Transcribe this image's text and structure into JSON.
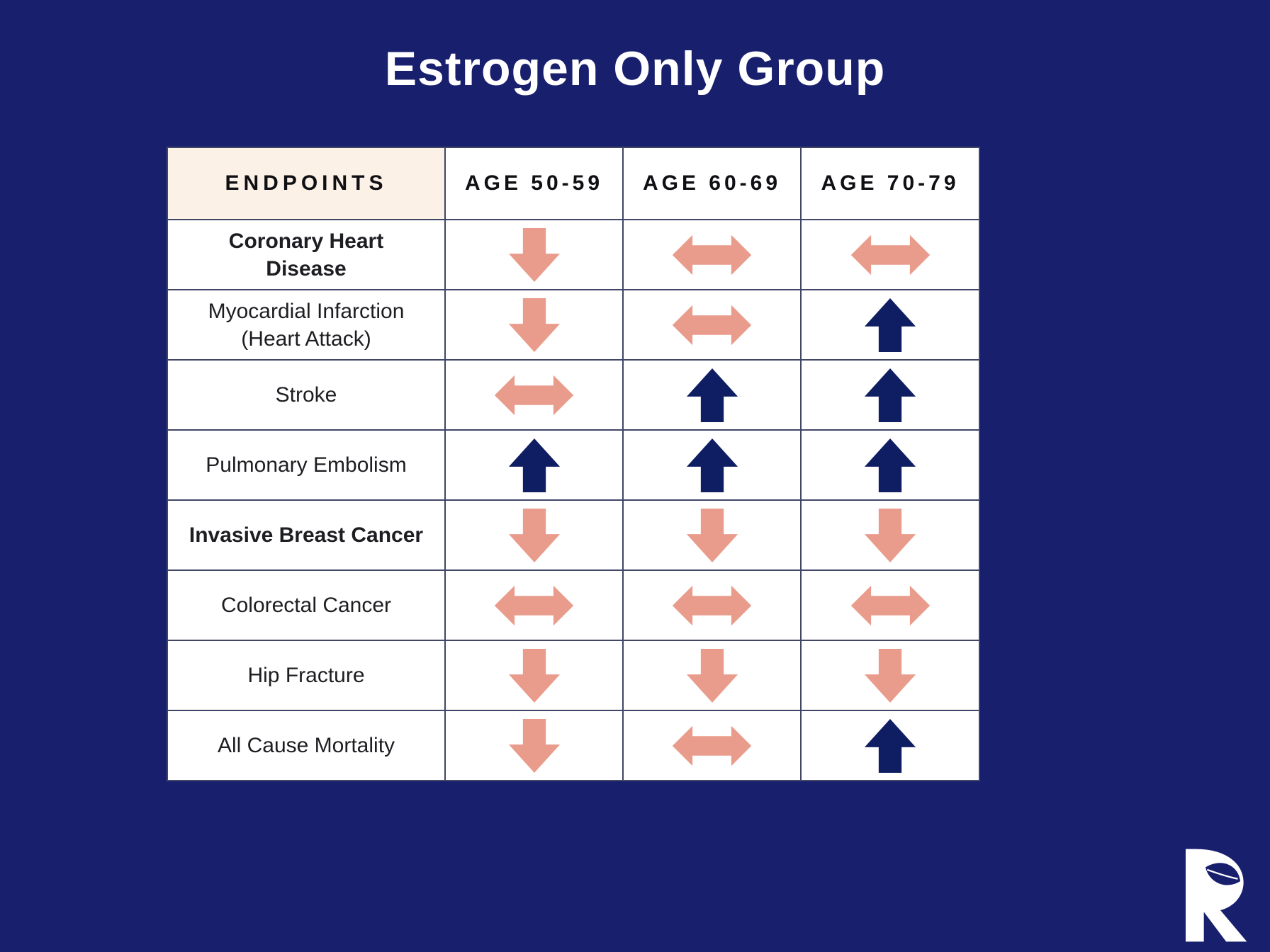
{
  "page": {
    "title": "Estrogen Only Group"
  },
  "colors": {
    "background": "#181f6d",
    "table_border": "#3f4666",
    "endpoints_header_bg": "#fbf1e6",
    "arrow_salmon": "#e99c8b",
    "arrow_navy": "#0f1e63",
    "logo_white": "#ffffff"
  },
  "chart_data": {
    "type": "table",
    "title": "Estrogen Only Group",
    "columns": [
      "ENDPOINTS",
      "AGE 50-59",
      "AGE 60-69",
      "AGE 70-79"
    ],
    "rows": [
      {
        "endpoint": "Coronary Heart Disease",
        "bold": true,
        "values": [
          "down",
          "left-right",
          "left-right"
        ]
      },
      {
        "endpoint": "Myocardial Infarction (Heart Attack)",
        "bold": false,
        "values": [
          "down",
          "left-right",
          "up"
        ]
      },
      {
        "endpoint": "Stroke",
        "bold": false,
        "values": [
          "left-right",
          "up",
          "up"
        ]
      },
      {
        "endpoint": "Pulmonary Embolism",
        "bold": false,
        "values": [
          "up",
          "up",
          "up"
        ]
      },
      {
        "endpoint": "Invasive Breast Cancer",
        "bold": true,
        "values": [
          "down",
          "down",
          "down"
        ]
      },
      {
        "endpoint": "Colorectal Cancer",
        "bold": false,
        "values": [
          "left-right",
          "left-right",
          "left-right"
        ]
      },
      {
        "endpoint": "Hip Fracture",
        "bold": false,
        "values": [
          "down",
          "down",
          "down"
        ]
      },
      {
        "endpoint": "All Cause Mortality",
        "bold": false,
        "values": [
          "down",
          "left-right",
          "up"
        ]
      }
    ]
  },
  "logo": {
    "letter": "R"
  }
}
